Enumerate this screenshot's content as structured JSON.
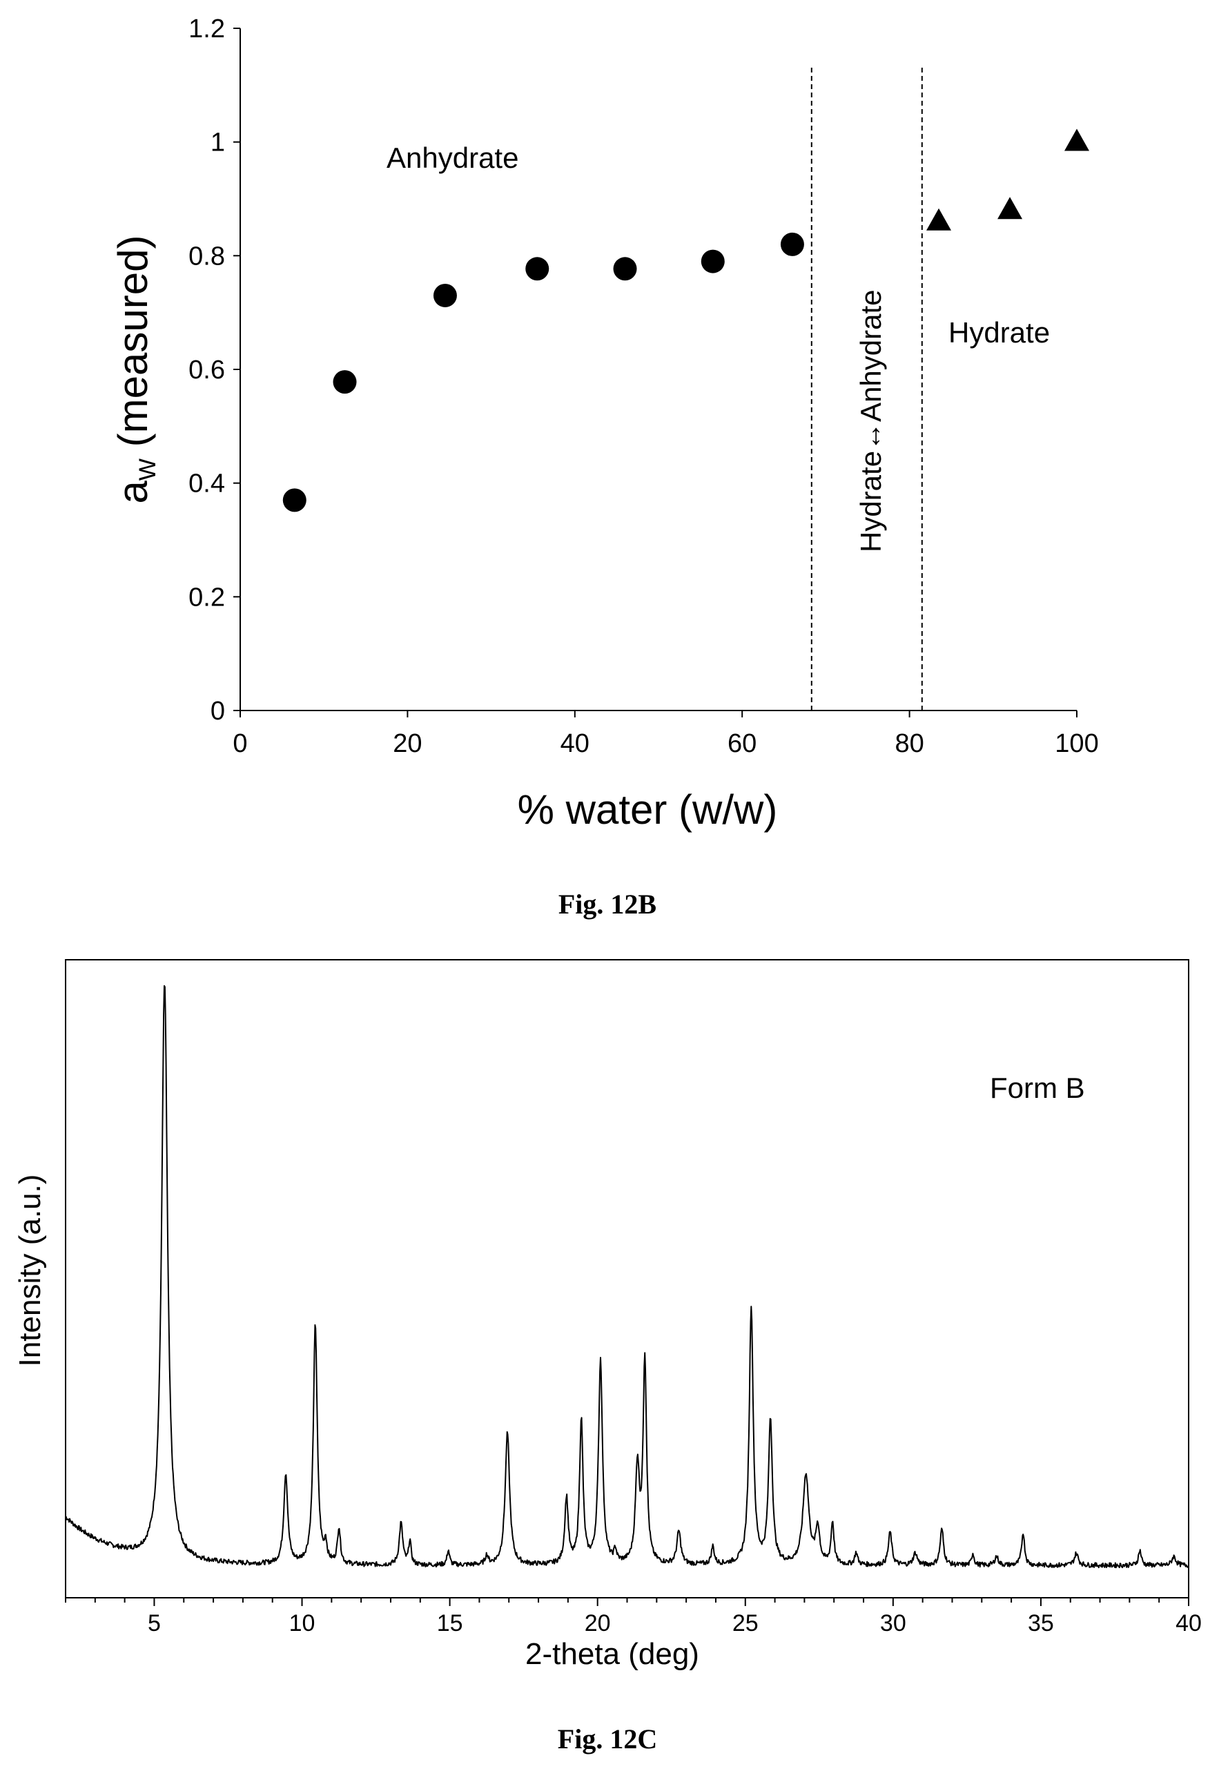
{
  "chart_data": [
    {
      "type": "scatter",
      "caption": "Fig. 12B",
      "xlabel": "% water (w/w)",
      "ylabel_main": "a",
      "ylabel_sub": "W",
      "ylabel_rest": " (measured)",
      "xlim": [
        0,
        100
      ],
      "ylim": [
        0,
        1.2
      ],
      "xticks": [
        "0",
        "20",
        "40",
        "60",
        "80",
        "100"
      ],
      "yticks": [
        "0",
        "0.2",
        "0.4",
        "0.6",
        "0.8",
        "1",
        "1.2"
      ],
      "series": [
        {
          "marker": "circle",
          "points": [
            [
              6.5,
              0.37
            ],
            [
              12.5,
              0.578
            ],
            [
              24.5,
              0.73
            ],
            [
              35.5,
              0.777
            ],
            [
              46,
              0.777
            ],
            [
              56.5,
              0.79
            ],
            [
              66,
              0.82
            ]
          ]
        },
        {
          "marker": "triangle",
          "points": [
            [
              83.5,
              0.86
            ],
            [
              92,
              0.88
            ],
            [
              100,
              1.0
            ]
          ]
        }
      ],
      "reference_lines_x": [
        68.3,
        81.5
      ],
      "annotations": {
        "anhydrate": "Anhydrate",
        "transition": "Hydrate↔Anhydrate",
        "hydrate": "Hydrate"
      }
    },
    {
      "type": "line",
      "caption": "Fig. 12C",
      "xlabel": "2-theta (deg)",
      "ylabel": "Intensity (a.u.)",
      "legend_label": "Form B",
      "xlim": [
        2,
        40
      ],
      "xticks": [
        "5",
        "10",
        "15",
        "20",
        "25",
        "30",
        "35",
        "40"
      ],
      "baseline": 0.04,
      "peaks": [
        [
          5.35,
          0.96,
          0.12
        ],
        [
          9.45,
          0.15,
          0.08
        ],
        [
          10.45,
          0.4,
          0.08
        ],
        [
          10.8,
          0.03,
          0.05
        ],
        [
          11.25,
          0.06,
          0.06
        ],
        [
          13.35,
          0.07,
          0.07
        ],
        [
          13.65,
          0.04,
          0.05
        ],
        [
          14.95,
          0.025,
          0.05
        ],
        [
          16.25,
          0.015,
          0.06
        ],
        [
          16.95,
          0.22,
          0.09
        ],
        [
          18.95,
          0.11,
          0.07
        ],
        [
          19.45,
          0.24,
          0.07
        ],
        [
          20.1,
          0.34,
          0.08
        ],
        [
          20.6,
          0.02,
          0.05
        ],
        [
          21.35,
          0.16,
          0.08
        ],
        [
          21.6,
          0.34,
          0.07
        ],
        [
          22.75,
          0.055,
          0.08
        ],
        [
          23.9,
          0.03,
          0.06
        ],
        [
          25.2,
          0.43,
          0.08
        ],
        [
          25.85,
          0.24,
          0.08
        ],
        [
          27.05,
          0.15,
          0.12
        ],
        [
          27.45,
          0.06,
          0.08
        ],
        [
          27.95,
          0.07,
          0.06
        ],
        [
          28.75,
          0.02,
          0.06
        ],
        [
          29.9,
          0.055,
          0.07
        ],
        [
          30.75,
          0.02,
          0.08
        ],
        [
          31.65,
          0.06,
          0.07
        ],
        [
          32.7,
          0.02,
          0.05
        ],
        [
          33.5,
          0.015,
          0.07
        ],
        [
          34.4,
          0.055,
          0.06
        ],
        [
          36.2,
          0.02,
          0.08
        ],
        [
          38.35,
          0.025,
          0.06
        ],
        [
          39.5,
          0.015,
          0.08
        ]
      ]
    }
  ]
}
